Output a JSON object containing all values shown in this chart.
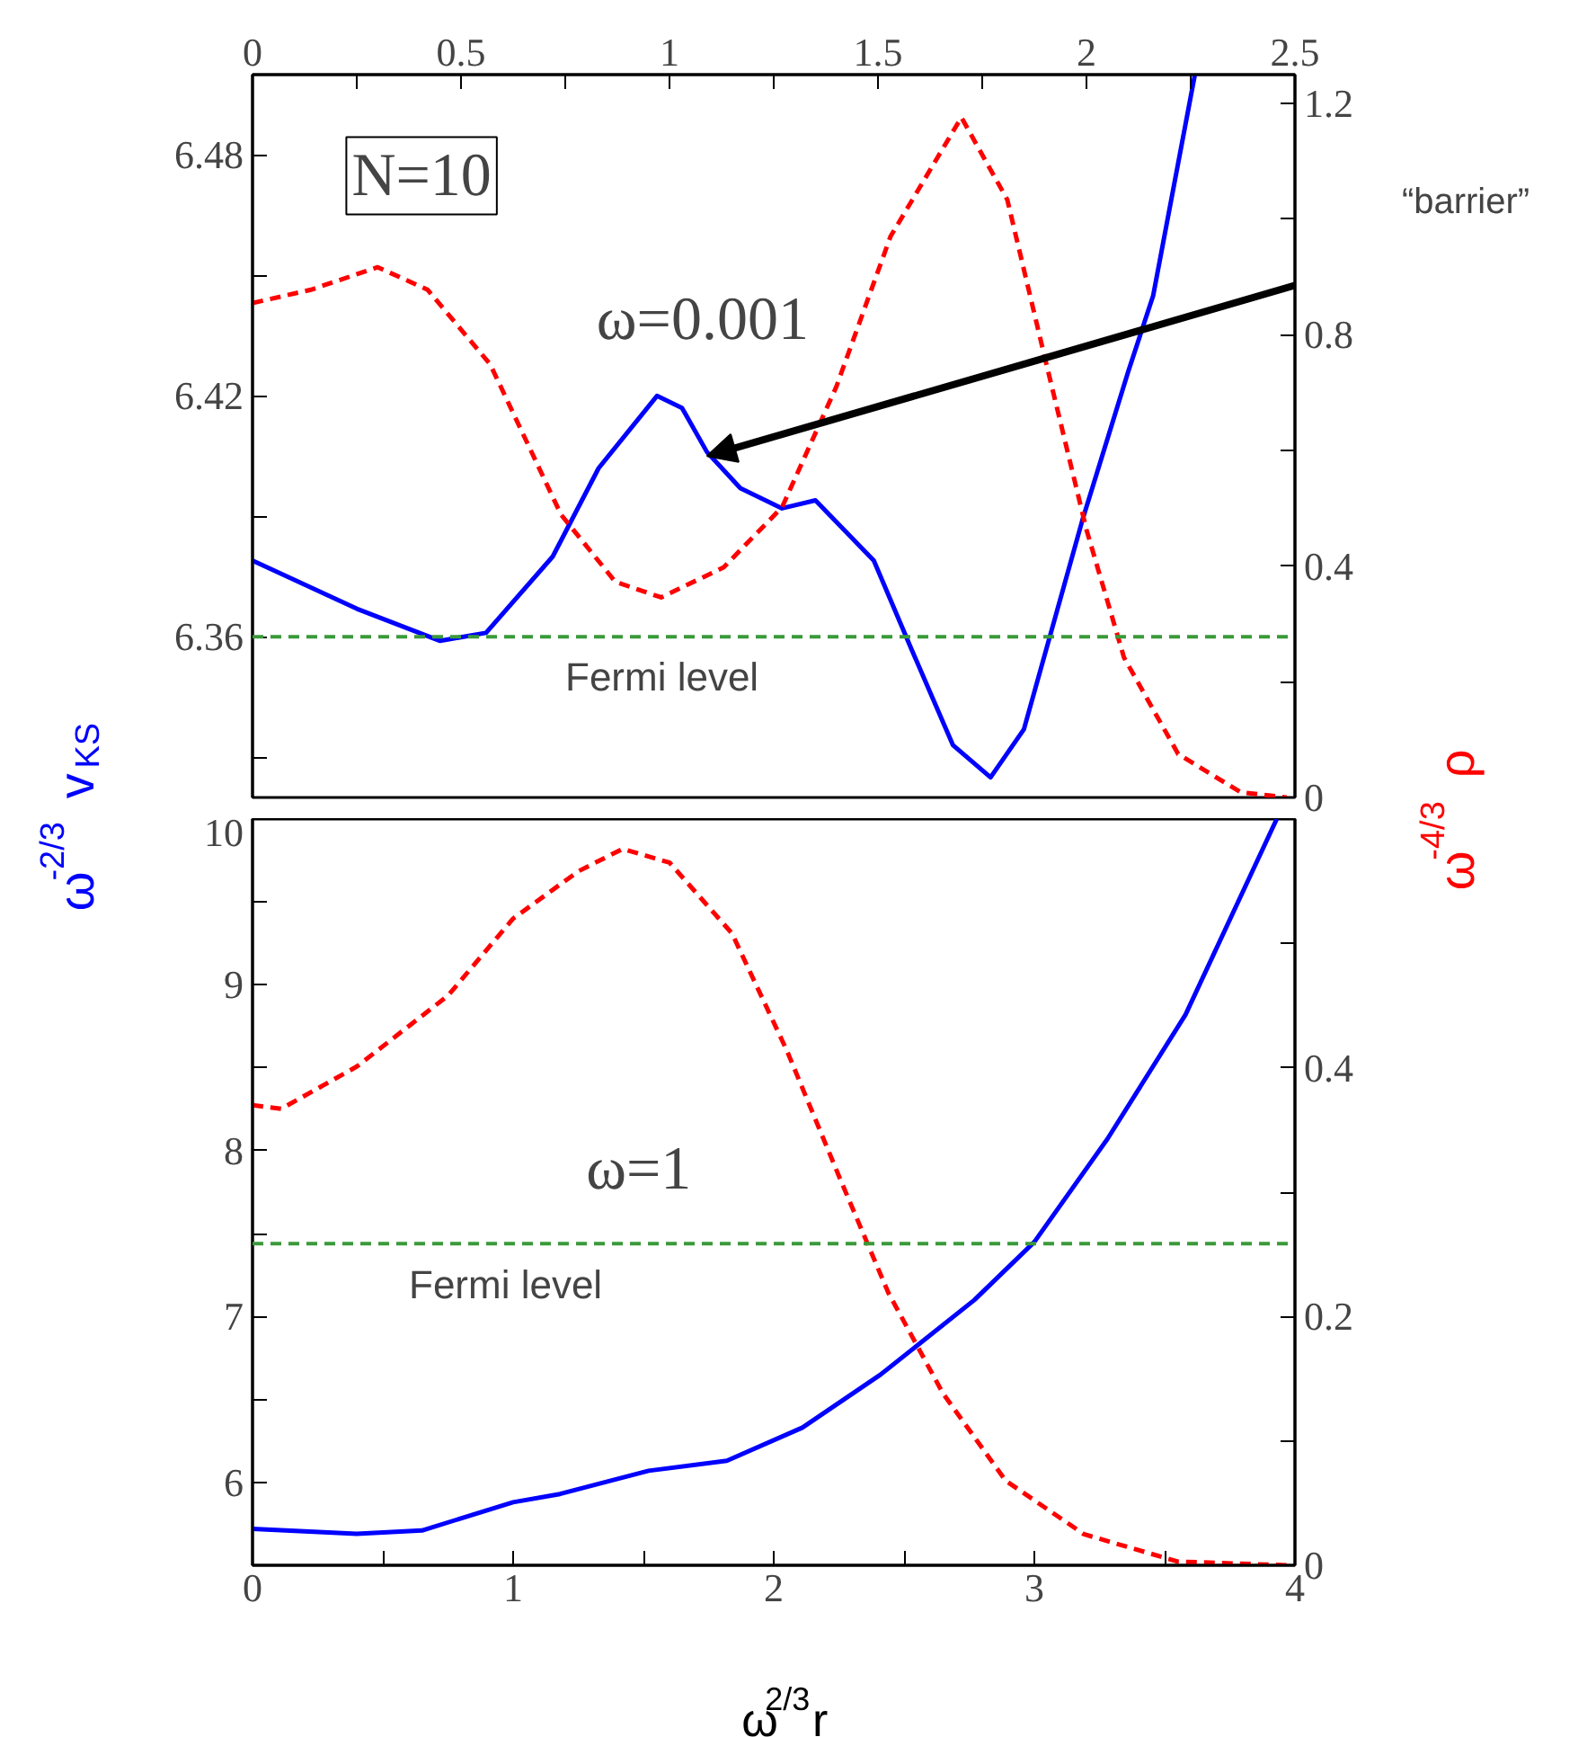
{
  "chart_data": [
    {
      "type": "line",
      "ylabel": "ω$^{-2/3}$v$_{KS}$",
      "y2label": "ω$^{-4/3}$ρ",
      "annotations": [
        "N=10",
        "ω=0.001",
        {
          "text": "“barrier”",
          "x": 1.09,
          "y": 6.405
        }
      ],
      "xlim": [
        0,
        2.5
      ],
      "xticks": [
        0,
        {
          "value": 0.25,
          "label": null
        },
        0.5,
        {
          "value": 0.75,
          "label": null
        },
        1,
        {
          "value": 1.25,
          "label": null
        },
        1.5,
        {
          "value": 1.75,
          "label": null
        },
        2,
        {
          "value": 2.25,
          "label": null
        },
        2.5
      ],
      "ylim": [
        6.32,
        6.5
      ],
      "yticks": [
        {
          "value": 6.33,
          "label": null
        },
        6.36,
        {
          "value": 6.39,
          "label": null
        },
        6.42,
        {
          "value": 6.45,
          "label": null
        },
        6.48
      ],
      "y2lim": [
        0,
        1.25
      ],
      "y2ticks": [
        0,
        {
          "value": 0.2,
          "label": null
        },
        0.4,
        {
          "value": 0.6,
          "label": null
        },
        0.8,
        {
          "value": 1.0,
          "label": null
        },
        1.2
      ],
      "ref_lines": [
        {
          "axis": "y",
          "value": 6.36,
          "label": "Fermi level",
          "color": "#3a9a3a",
          "line_style": "dashed"
        }
      ],
      "grid": false,
      "series": [
        {
          "color": "#0000ff",
          "line_style": "solid",
          "x": [
            0,
            0.25,
            0.45,
            0.56,
            0.72,
            0.83,
            0.97,
            1.03,
            1.09,
            1.17,
            1.27,
            1.35,
            1.49,
            1.58,
            1.68,
            1.77,
            1.85,
            1.99,
            2.1,
            2.16,
            2.26
          ],
          "values": [
            6.379,
            6.367,
            6.359,
            6.361,
            6.38,
            6.402,
            6.42,
            6.417,
            6.406,
            6.397,
            6.392,
            6.394,
            6.379,
            6.357,
            6.333,
            6.325,
            6.337,
            6.389,
            6.426,
            6.445,
            6.5
          ]
        },
        {
          "color": "#ff0000",
          "line_style": "dashed",
          "axis": "y2",
          "x": [
            0,
            0.14,
            0.3,
            0.42,
            0.57,
            0.74,
            0.87,
            0.98,
            1.13,
            1.27,
            1.4,
            1.53,
            1.7,
            1.81,
            1.9,
            2.0,
            2.09,
            2.22,
            2.37,
            2.48
          ],
          "values": [
            0.855,
            0.878,
            0.917,
            0.878,
            0.749,
            0.489,
            0.373,
            0.346,
            0.398,
            0.502,
            0.71,
            0.97,
            1.176,
            1.034,
            0.761,
            0.463,
            0.242,
            0.075,
            0.009,
            0
          ]
        }
      ]
    },
    {
      "type": "line",
      "xlabel": "ω$^{2/3}$r",
      "annotations": [
        "ω=1"
      ],
      "xlim": [
        0,
        4
      ],
      "xticks": [
        0,
        {
          "value": 0.5,
          "label": null
        },
        1,
        {
          "value": 1.5,
          "label": null
        },
        2,
        {
          "value": 2.5,
          "label": null
        },
        3,
        {
          "value": 3.5,
          "label": null
        },
        4
      ],
      "ylim": [
        5.5,
        10
      ],
      "yticks": [
        6,
        {
          "value": 6.5,
          "label": null
        },
        7,
        {
          "value": 7.5,
          "label": null
        },
        8,
        {
          "value": 8.5,
          "label": null
        },
        9,
        {
          "value": 9.5,
          "label": null
        },
        10
      ],
      "y2lim": [
        0,
        0.6
      ],
      "y2ticks": [
        0,
        {
          "value": 0.1,
          "label": null
        },
        0.2,
        {
          "value": 0.3,
          "label": null
        },
        0.4,
        {
          "value": 0.5,
          "label": null
        }
      ],
      "ref_lines": [
        {
          "axis": "y",
          "value": 7.44,
          "label": "Fermi level",
          "color": "#3a9a3a",
          "line_style": "dashed"
        }
      ],
      "grid": false,
      "series": [
        {
          "color": "#0000ff",
          "line_style": "solid",
          "x": [
            0,
            0.4,
            0.65,
            1.0,
            1.18,
            1.52,
            1.82,
            2.11,
            2.41,
            2.77,
            3.0,
            3.28,
            3.58,
            3.93
          ],
          "values": [
            5.72,
            5.69,
            5.71,
            5.88,
            5.93,
            6.07,
            6.13,
            6.33,
            6.65,
            7.1,
            7.45,
            8.07,
            8.82,
            10
          ]
        },
        {
          "color": "#ff0000",
          "line_style": "dashed",
          "axis": "y2",
          "x": [
            0,
            0.11,
            0.4,
            0.75,
            1.0,
            1.25,
            1.42,
            1.6,
            1.84,
            2.05,
            2.26,
            2.44,
            2.65,
            2.89,
            3.19,
            3.55,
            3.97
          ],
          "values": [
            0.37,
            0.367,
            0.401,
            0.458,
            0.52,
            0.558,
            0.576,
            0.565,
            0.508,
            0.414,
            0.308,
            0.219,
            0.138,
            0.068,
            0.025,
            0.003,
            0
          ]
        }
      ]
    }
  ]
}
